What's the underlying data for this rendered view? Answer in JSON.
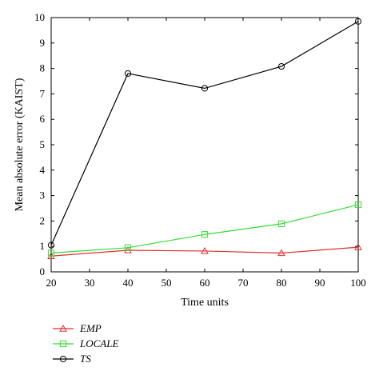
{
  "chart_data": {
    "type": "line",
    "xlabel": "Time units",
    "ylabel": "Mean absolute error (KAIST)",
    "xlim": [
      20,
      100
    ],
    "ylim": [
      0,
      10
    ],
    "xticks": [
      20,
      30,
      40,
      50,
      60,
      70,
      80,
      90,
      100
    ],
    "yticks": [
      0,
      1,
      2,
      3,
      4,
      5,
      6,
      7,
      8,
      9,
      10
    ],
    "grid": false,
    "legend_position": "below-left",
    "x": [
      20,
      40,
      60,
      80,
      100
    ],
    "series": [
      {
        "name": "EMP",
        "color": "#e03030",
        "marker": "triangle",
        "values": [
          0.62,
          0.85,
          0.82,
          0.74,
          0.97
        ]
      },
      {
        "name": "LOCALE",
        "color": "#33dd33",
        "marker": "square",
        "values": [
          0.74,
          0.95,
          1.47,
          1.89,
          2.64
        ]
      },
      {
        "name": "TS",
        "color": "#000000",
        "marker": "circle",
        "values": [
          1.05,
          7.8,
          7.22,
          8.08,
          9.85
        ]
      }
    ]
  }
}
